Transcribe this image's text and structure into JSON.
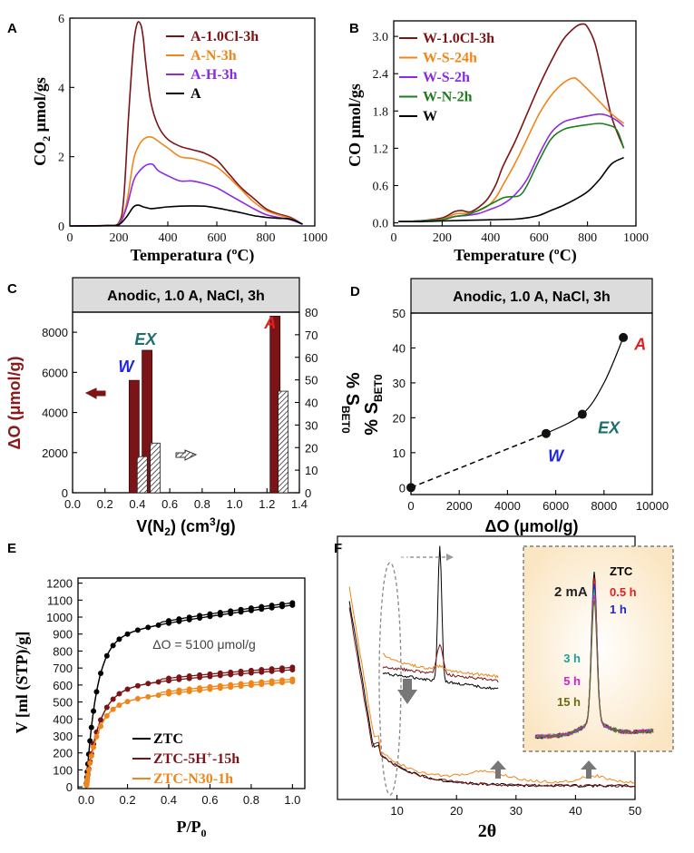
{
  "chart_data": [
    {
      "panel": "A",
      "type": "line",
      "xlabel": "Temperatura (ºC)",
      "ylabel": "CO2 μmol/gs",
      "ylabel_main": "CO",
      "ylabel_sub": "2",
      "ylabel_rest": " μmol/gs",
      "xlim": [
        0,
        1000
      ],
      "ylim": [
        0,
        6
      ],
      "xticks": [
        "0",
        "200",
        "400",
        "600",
        "800",
        "1000"
      ],
      "yticks": [
        "0",
        "2",
        "4",
        "6"
      ],
      "series": [
        {
          "name": "A-1.0Cl-3h",
          "color": "#7b1416",
          "x": [
            0,
            150,
            200,
            220,
            240,
            260,
            275,
            290,
            300,
            310,
            330,
            360,
            400,
            450,
            500,
            550,
            600,
            650,
            700,
            750,
            800,
            850,
            900,
            950
          ],
          "y": [
            0,
            0.01,
            0.1,
            0.8,
            3.2,
            5.2,
            5.85,
            5.8,
            5.4,
            4.7,
            3.6,
            2.9,
            2.5,
            2.3,
            2.2,
            2.1,
            1.9,
            1.5,
            1.1,
            0.8,
            0.5,
            0.35,
            0.25,
            0.05
          ]
        },
        {
          "name": "A-N-3h",
          "color": "#f08519",
          "x": [
            0,
            150,
            200,
            230,
            260,
            280,
            300,
            320,
            340,
            360,
            400,
            450,
            500,
            550,
            600,
            650,
            700,
            750,
            800,
            850,
            900,
            950
          ],
          "y": [
            0,
            0.01,
            0.08,
            0.6,
            1.9,
            2.3,
            2.5,
            2.57,
            2.55,
            2.45,
            2.25,
            2.0,
            1.95,
            1.85,
            1.7,
            1.4,
            1.05,
            0.7,
            0.45,
            0.32,
            0.22,
            0.05
          ]
        },
        {
          "name": "A-H-3h",
          "color": "#8a2be2",
          "x": [
            0,
            150,
            200,
            230,
            260,
            280,
            300,
            320,
            340,
            360,
            400,
            450,
            500,
            550,
            600,
            650,
            700,
            750,
            800,
            850,
            900,
            950
          ],
          "y": [
            0,
            0.01,
            0.06,
            0.5,
            1.3,
            1.55,
            1.7,
            1.78,
            1.77,
            1.6,
            1.45,
            1.3,
            1.3,
            1.22,
            1.1,
            0.9,
            0.7,
            0.5,
            0.33,
            0.25,
            0.18,
            0.05
          ]
        },
        {
          "name": "A",
          "color": "#000000",
          "x": [
            0,
            150,
            200,
            230,
            260,
            280,
            300,
            330,
            360,
            400,
            450,
            500,
            550,
            600,
            650,
            700,
            750,
            800,
            850,
            900,
            950
          ],
          "y": [
            0,
            0.01,
            0.04,
            0.25,
            0.55,
            0.6,
            0.55,
            0.5,
            0.52,
            0.55,
            0.57,
            0.58,
            0.57,
            0.52,
            0.45,
            0.38,
            0.3,
            0.25,
            0.22,
            0.2,
            0.05
          ]
        }
      ]
    },
    {
      "panel": "B",
      "type": "line",
      "xlabel": "Temperature (ºC)",
      "ylabel": "CO μmol/gs",
      "xlim": [
        0,
        1000
      ],
      "ylim": [
        0,
        3.2
      ],
      "xticks": [
        "0",
        "200",
        "400",
        "600",
        "800",
        "1000"
      ],
      "yticks": [
        "0.0",
        "0.6",
        "1.2",
        "1.8",
        "2.4",
        "3.0"
      ],
      "series": [
        {
          "name": "W-1.0Cl-3h",
          "color": "#7b1416",
          "x": [
            20,
            100,
            200,
            250,
            280,
            320,
            380,
            420,
            450,
            500,
            550,
            600,
            650,
            700,
            750,
            780,
            800,
            830,
            860,
            900,
            950
          ],
          "y": [
            0.02,
            0.03,
            0.08,
            0.18,
            0.2,
            0.18,
            0.35,
            0.6,
            0.9,
            1.3,
            1.75,
            2.2,
            2.6,
            2.95,
            3.15,
            3.2,
            3.15,
            2.9,
            2.4,
            1.7,
            1.2
          ]
        },
        {
          "name": "W-S-24h",
          "color": "#f08519",
          "x": [
            20,
            100,
            200,
            250,
            280,
            320,
            380,
            420,
            450,
            500,
            550,
            600,
            650,
            700,
            740,
            760,
            800,
            850,
            900,
            950
          ],
          "y": [
            0.02,
            0.03,
            0.06,
            0.14,
            0.15,
            0.16,
            0.25,
            0.4,
            0.6,
            0.95,
            1.35,
            1.75,
            2.05,
            2.25,
            2.33,
            2.3,
            2.15,
            1.95,
            1.75,
            1.6
          ]
        },
        {
          "name": "W-S-2h",
          "color": "#8a2be2",
          "x": [
            20,
            100,
            200,
            250,
            300,
            350,
            400,
            450,
            500,
            550,
            600,
            650,
            700,
            750,
            800,
            850,
            880,
            920,
            950
          ],
          "y": [
            0.02,
            0.03,
            0.05,
            0.1,
            0.12,
            0.15,
            0.22,
            0.3,
            0.45,
            0.7,
            1.1,
            1.45,
            1.62,
            1.68,
            1.72,
            1.75,
            1.73,
            1.65,
            1.55
          ]
        },
        {
          "name": "W-N-2h",
          "color": "#1e7d1e",
          "x": [
            20,
            100,
            200,
            250,
            300,
            350,
            400,
            450,
            480,
            520,
            550,
            600,
            650,
            700,
            750,
            800,
            850,
            880,
            920,
            950
          ],
          "y": [
            0.02,
            0.03,
            0.05,
            0.1,
            0.13,
            0.2,
            0.3,
            0.4,
            0.42,
            0.44,
            0.6,
            1.0,
            1.35,
            1.5,
            1.55,
            1.58,
            1.6,
            1.58,
            1.5,
            1.2
          ]
        },
        {
          "name": "W",
          "color": "#000000",
          "x": [
            20,
            100,
            200,
            300,
            400,
            500,
            550,
            600,
            650,
            700,
            750,
            800,
            850,
            900,
            950
          ],
          "y": [
            0.02,
            0.02,
            0.03,
            0.04,
            0.05,
            0.06,
            0.08,
            0.12,
            0.2,
            0.28,
            0.38,
            0.5,
            0.7,
            0.95,
            1.05
          ]
        }
      ]
    },
    {
      "panel": "C",
      "type": "bar",
      "box_title": "Anodic, 1.0 A, NaCl, 3h",
      "xlabel": "V(N₂) (cm³/g)",
      "xlabel_pre": "V(N",
      "xlabel_sub": "2",
      "xlabel_post": ") (cm",
      "xlabel_sup": "3",
      "xlabel_end": "/g)",
      "ylabel_left": "ΔO (μmol/g)",
      "ylabel_right": "% SBET0",
      "ylabel_right_pre": "% S",
      "ylabel_right_sub": "BET0",
      "xlim": [
        0,
        1.4
      ],
      "ylim_left": [
        0,
        9000
      ],
      "ylim_right": [
        0,
        80
      ],
      "xticks": [
        "0.0",
        "0.2",
        "0.4",
        "0.6",
        "0.8",
        "1.0",
        "1.2",
        "1.4"
      ],
      "yticks_left": [
        "0",
        "2000",
        "4000",
        "6000",
        "8000"
      ],
      "yticks_right": [
        "0",
        "10",
        "20",
        "30",
        "40",
        "50",
        "60",
        "70",
        "80"
      ],
      "deltaO_bars": [
        {
          "x": 0.38,
          "value": 5600
        },
        {
          "x": 0.46,
          "value": 7100
        },
        {
          "x": 1.25,
          "value": 8800
        }
      ],
      "sbet_bars": [
        {
          "x": 0.43,
          "value": 16
        },
        {
          "x": 0.51,
          "value": 22
        },
        {
          "x": 1.3,
          "value": 45
        }
      ],
      "labels": [
        {
          "text": "W",
          "color": "#1f24e0"
        },
        {
          "text": "EX",
          "color": "#1f6e6e"
        },
        {
          "text": "A",
          "color": "#e41f1f"
        }
      ]
    },
    {
      "panel": "D",
      "type": "scatter",
      "box_title": "Anodic, 1.0 A, NaCl, 3h",
      "xlabel": "ΔO (μmol/g)",
      "ylabel": "% SBET0",
      "ylabel_pre": "% S",
      "ylabel_sub": "BET0",
      "xlim": [
        0,
        10000
      ],
      "ylim": [
        -2,
        50
      ],
      "xticks": [
        "0",
        "2000",
        "4000",
        "6000",
        "8000",
        "10000"
      ],
      "yticks": [
        "0",
        "10",
        "20",
        "30",
        "40",
        "50"
      ],
      "points": [
        {
          "x": 0,
          "y": 0
        },
        {
          "x": 5600,
          "y": 15.5
        },
        {
          "x": 7100,
          "y": 21
        },
        {
          "x": 8800,
          "y": 43
        }
      ],
      "labels": [
        {
          "text": "W",
          "color": "#1f24e0"
        },
        {
          "text": "EX",
          "color": "#1f6e6e"
        },
        {
          "text": "A",
          "color": "#e41f1f"
        }
      ]
    },
    {
      "panel": "E",
      "type": "scatter",
      "xlabel": "P/P0",
      "xlabel_pre": "P/P",
      "xlabel_sub": "0",
      "ylabel": "V [ml (STP)/g]",
      "annotation": "ΔO = 5100 μmol/g",
      "xlim": [
        0,
        1.0
      ],
      "ylim": [
        0,
        1200
      ],
      "xticks": [
        "0.0",
        "0.2",
        "0.4",
        "0.6",
        "0.8",
        "1.0"
      ],
      "yticks": [
        "0",
        "100",
        "200",
        "300",
        "400",
        "500",
        "600",
        "700",
        "800",
        "900",
        "1000",
        "1100",
        "1200"
      ],
      "series": [
        {
          "name": "ZTC",
          "color": "#000000",
          "plateau": 1070,
          "knee": 820,
          "steep": 20
        },
        {
          "name": "ZTC-5H+-15h",
          "color": "#7b1416",
          "plateau": 690,
          "knee": 540,
          "steep": 16
        },
        {
          "name": "ZTC-N30-1h",
          "color": "#f08519",
          "plateau": 620,
          "knee": 450,
          "steep": 18
        }
      ],
      "legend": [
        {
          "pre": "ZTC",
          "sup": "",
          "post": "",
          "color": "#000000"
        },
        {
          "pre": "ZTC-5H",
          "sup": "+",
          "post": "-15h",
          "color": "#7b1416"
        },
        {
          "pre": "ZTC-N30-1h",
          "sup": "",
          "post": "",
          "color": "#f08519"
        }
      ]
    },
    {
      "panel": "F",
      "type": "line",
      "xlabel": "2θ",
      "xlim": [
        0,
        50
      ],
      "xticks": [
        "10",
        "20",
        "30",
        "40",
        "50"
      ],
      "series_colors": [
        "#000000",
        "#7b1416",
        "#f08519"
      ],
      "inset": {
        "title": "2 mA",
        "labels": [
          {
            "text": "ZTC",
            "color": "#000000"
          },
          {
            "text": "0.5 h",
            "color": "#e41f1f"
          },
          {
            "text": "1 h",
            "color": "#1f24e0"
          },
          {
            "text": "3 h",
            "color": "#1aa39a"
          },
          {
            "text": "5 h",
            "color": "#d020d0"
          },
          {
            "text": "15 h",
            "color": "#6b6b10"
          }
        ]
      }
    }
  ],
  "panels": {
    "A": "A",
    "B": "B",
    "C": "C",
    "D": "D",
    "E": "E",
    "F": "F"
  }
}
